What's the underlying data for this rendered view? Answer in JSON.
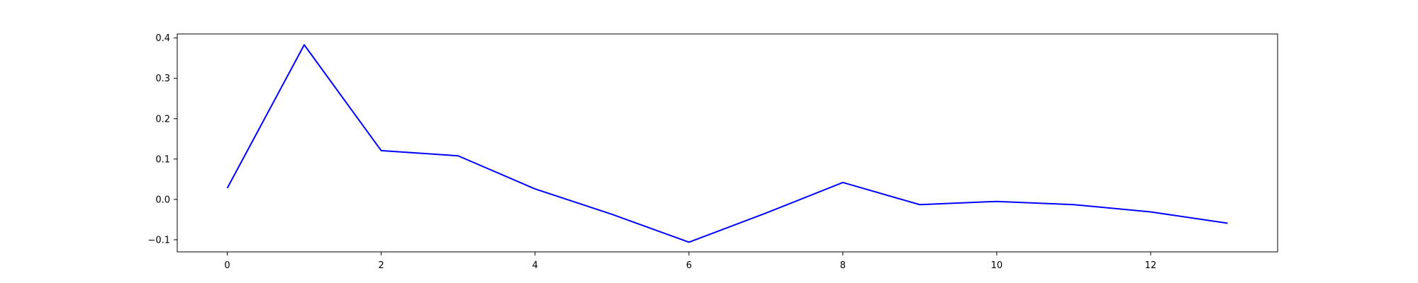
{
  "chart_data": {
    "type": "line",
    "title": "",
    "xlabel": "",
    "ylabel": "",
    "x": [
      0,
      1,
      2,
      3,
      4,
      5,
      6,
      7,
      8,
      9,
      10,
      11,
      12,
      13
    ],
    "series": [
      {
        "color": "#0000ff",
        "values": [
          0.028,
          0.383,
          0.121,
          0.108,
          0.026,
          -0.037,
          -0.106,
          -0.034,
          0.042,
          -0.013,
          -0.005,
          -0.013,
          -0.031,
          -0.059
        ]
      }
    ],
    "xlim": [
      -0.65,
      13.65
    ],
    "ylim": [
      -0.13,
      0.41
    ],
    "xticks": [
      0,
      2,
      4,
      6,
      8,
      10,
      12
    ],
    "xtick_labels": [
      "0",
      "2",
      "4",
      "6",
      "8",
      "10",
      "12"
    ],
    "yticks": [
      -0.1,
      0.0,
      0.1,
      0.2,
      0.3,
      0.4
    ],
    "ytick_labels": [
      "−0.1",
      "0.0",
      "0.1",
      "0.2",
      "0.3",
      "0.4"
    ],
    "grid": false,
    "legend": "none"
  }
}
